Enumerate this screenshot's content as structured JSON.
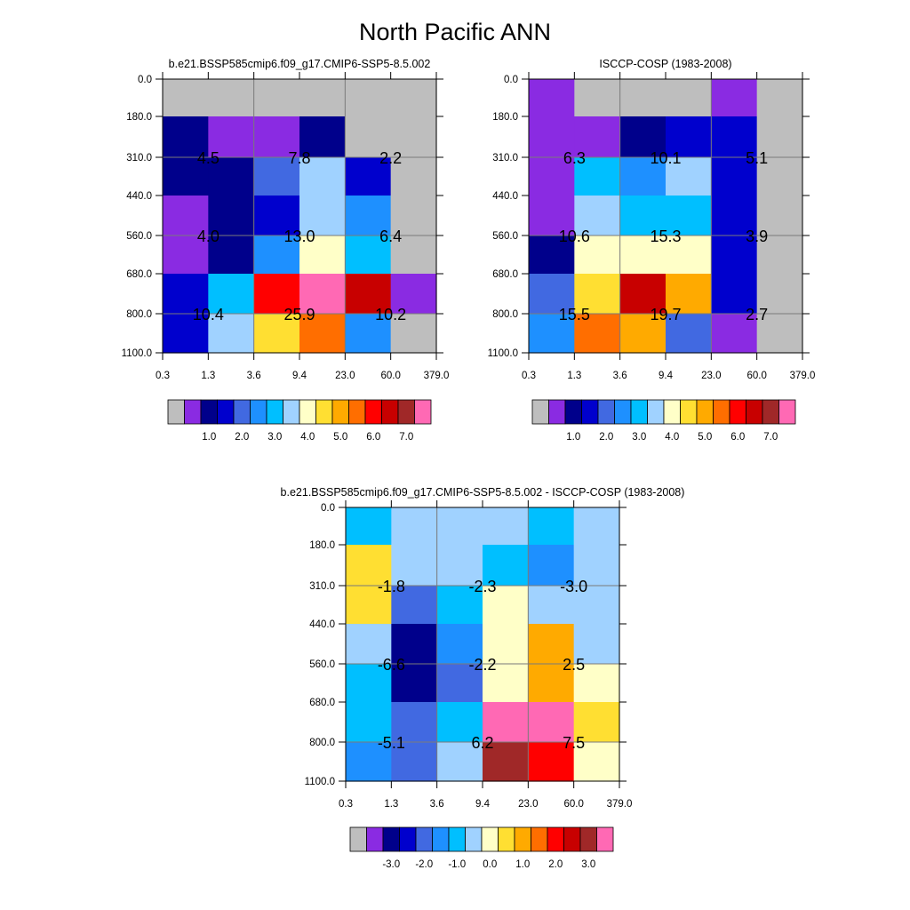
{
  "title": "North Pacific ANN",
  "palette": {
    "missing": "#bebebe",
    "colors": [
      "#bebebe",
      "#8a2be2",
      "#00008b",
      "#0000cd",
      "#4169e1",
      "#1e90ff",
      "#00bfff",
      "#a0d2ff",
      "#ffffc8",
      "#ffdf32",
      "#ffaa00",
      "#ff6e00",
      "#ff0000",
      "#c80000",
      "#a02828",
      "#ff69b4"
    ],
    "grid_line": "#7a7a7a"
  },
  "chart_data": [
    {
      "type": "heatmap",
      "title": "b.e21.BSSP585cmip6.f09_g17.CMIP6-SSP5-8.5.002",
      "x_tick_labels": [
        "0.3",
        "1.3",
        "3.6",
        "9.4",
        "23.0",
        "60.0",
        "379.0"
      ],
      "y_tick_labels": [
        "0.0",
        "180.0",
        "310.0",
        "440.0",
        "560.0",
        "680.0",
        "800.0",
        "1100.0"
      ],
      "cells": [
        [
          0,
          0,
          0,
          0,
          0,
          0
        ],
        [
          2,
          1,
          1,
          2,
          0,
          0
        ],
        [
          2,
          2,
          4,
          7,
          3,
          0
        ],
        [
          1,
          2,
          3,
          7,
          5,
          0
        ],
        [
          1,
          2,
          5,
          8,
          6,
          0
        ],
        [
          3,
          6,
          12,
          15,
          13,
          1
        ],
        [
          3,
          7,
          9,
          11,
          5,
          0
        ]
      ],
      "value_labels": [
        {
          "text": "4.5",
          "row": 1.5,
          "col": 1
        },
        {
          "text": "7.8",
          "row": 1.5,
          "col": 3
        },
        {
          "text": "2.2",
          "row": 1.5,
          "col": 5
        },
        {
          "text": "4.0",
          "row": 3.5,
          "col": 1
        },
        {
          "text": "13.0",
          "row": 3.5,
          "col": 3
        },
        {
          "text": "6.4",
          "row": 3.5,
          "col": 5
        },
        {
          "text": "10.4",
          "row": 5.5,
          "col": 1
        },
        {
          "text": "25.9",
          "row": 5.5,
          "col": 3
        },
        {
          "text": "10.2",
          "row": 5.5,
          "col": 5
        }
      ],
      "colorbar_labels": [
        "1.0",
        "2.0",
        "3.0",
        "4.0",
        "5.0",
        "6.0",
        "7.0"
      ]
    },
    {
      "type": "heatmap",
      "title": "ISCCP-COSP (1983-2008)",
      "x_tick_labels": [
        "0.3",
        "1.3",
        "3.6",
        "9.4",
        "23.0",
        "60.0",
        "379.0"
      ],
      "y_tick_labels": [
        "0.0",
        "180.0",
        "310.0",
        "440.0",
        "560.0",
        "680.0",
        "800.0",
        "1100.0"
      ],
      "cells": [
        [
          1,
          0,
          0,
          0,
          1,
          0
        ],
        [
          1,
          1,
          2,
          3,
          3,
          0
        ],
        [
          1,
          6,
          5,
          7,
          3,
          0
        ],
        [
          1,
          7,
          6,
          6,
          3,
          0
        ],
        [
          2,
          8,
          8,
          8,
          3,
          0
        ],
        [
          4,
          9,
          13,
          10,
          3,
          0
        ],
        [
          5,
          11,
          10,
          4,
          1,
          0
        ]
      ],
      "value_labels": [
        {
          "text": "6.3",
          "row": 1.5,
          "col": 1
        },
        {
          "text": "10.1",
          "row": 1.5,
          "col": 3
        },
        {
          "text": "5.1",
          "row": 1.5,
          "col": 5
        },
        {
          "text": "10.6",
          "row": 3.5,
          "col": 1
        },
        {
          "text": "15.3",
          "row": 3.5,
          "col": 3
        },
        {
          "text": "3.9",
          "row": 3.5,
          "col": 5
        },
        {
          "text": "15.5",
          "row": 5.5,
          "col": 1
        },
        {
          "text": "19.7",
          "row": 5.5,
          "col": 3
        },
        {
          "text": "2.7",
          "row": 5.5,
          "col": 5
        }
      ],
      "colorbar_labels": [
        "1.0",
        "2.0",
        "3.0",
        "4.0",
        "5.0",
        "6.0",
        "7.0"
      ]
    },
    {
      "type": "heatmap",
      "title": "b.e21.BSSP585cmip6.f09_g17.CMIP6-SSP5-8.5.002 - ISCCP-COSP (1983-2008)",
      "x_tick_labels": [
        "0.3",
        "1.3",
        "3.6",
        "9.4",
        "23.0",
        "60.0",
        "379.0"
      ],
      "y_tick_labels": [
        "0.0",
        "180.0",
        "310.0",
        "440.0",
        "560.0",
        "680.0",
        "800.0",
        "1100.0"
      ],
      "cells": [
        [
          6,
          7,
          7,
          7,
          6,
          7
        ],
        [
          9,
          7,
          7,
          6,
          5,
          7
        ],
        [
          9,
          4,
          6,
          8,
          7,
          7
        ],
        [
          7,
          2,
          5,
          8,
          10,
          7
        ],
        [
          6,
          2,
          4,
          8,
          10,
          8
        ],
        [
          6,
          4,
          6,
          15,
          15,
          9
        ],
        [
          5,
          4,
          7,
          14,
          12,
          8
        ]
      ],
      "value_labels": [
        {
          "text": "-1.8",
          "row": 1.5,
          "col": 1
        },
        {
          "text": "-2.3",
          "row": 1.5,
          "col": 3
        },
        {
          "text": "-3.0",
          "row": 1.5,
          "col": 5
        },
        {
          "text": "-6.6",
          "row": 3.5,
          "col": 1
        },
        {
          "text": "-2.2",
          "row": 3.5,
          "col": 3
        },
        {
          "text": "2.5",
          "row": 3.5,
          "col": 5
        },
        {
          "text": "-5.1",
          "row": 5.5,
          "col": 1
        },
        {
          "text": "6.2",
          "row": 5.5,
          "col": 3
        },
        {
          "text": "7.5",
          "row": 5.5,
          "col": 5
        }
      ],
      "colorbar_labels": [
        "-3.0",
        "-2.0",
        "-1.0",
        "0.0",
        "1.0",
        "2.0",
        "3.0"
      ]
    }
  ]
}
